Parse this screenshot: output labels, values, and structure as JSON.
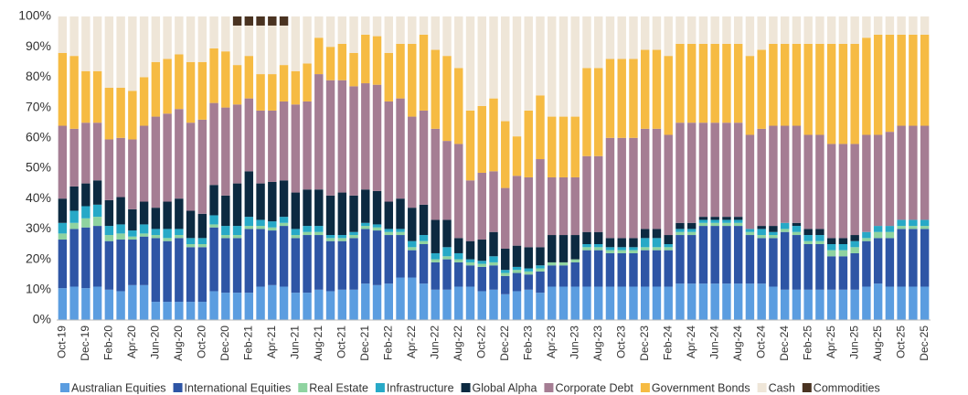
{
  "chart_data": {
    "type": "stacked-bar",
    "categories": [
      "Oct-19",
      null,
      "Dec-19",
      null,
      "Feb-20",
      null,
      "Apr-20",
      null,
      "Jun-20",
      null,
      "Aug-20",
      null,
      "Oct-20",
      null,
      "Dec-20",
      null,
      "Feb-21",
      null,
      "Apr-21",
      null,
      "Jun-21",
      null,
      "Aug-21",
      null,
      "Oct-21",
      null,
      "Dec-21",
      null,
      "Feb-22",
      null,
      "Apr-22",
      null,
      "Jun-22",
      null,
      "Aug-22",
      null,
      "Oct-22",
      null,
      "Dec-22",
      null,
      "Feb-23",
      null,
      "Apr-23",
      null,
      "Jun-23",
      null,
      "Aug-23",
      null,
      "Oct-23",
      null,
      "Dec-23",
      null,
      "Feb-24",
      null,
      "Apr-24",
      null,
      "Jun-24",
      null,
      "Aug-24",
      null,
      "Oct-24",
      null,
      "Dec-24",
      null,
      "Feb-25",
      null,
      "Apr-25",
      null,
      "Jun-25",
      null,
      "Aug-25",
      null,
      "Oct-25",
      null,
      "Dec-25"
    ],
    "series": [
      {
        "name": "Australian Equities",
        "color": "#5b9de0",
        "values": [
          10.5,
          11,
          10.5,
          11,
          10,
          9.5,
          11.5,
          11.5,
          6,
          6,
          6,
          6,
          6,
          9.5,
          9,
          9,
          9,
          11,
          11.5,
          11,
          9,
          9,
          10,
          9.5,
          10,
          10,
          12,
          11.5,
          12,
          14,
          14,
          12,
          10,
          10,
          11,
          11,
          9.5,
          10,
          8.5,
          9.5,
          10,
          9,
          11,
          11,
          11,
          11,
          11,
          11,
          11,
          11,
          11,
          11,
          11,
          12,
          12,
          12,
          12,
          12,
          12,
          12,
          12,
          11,
          10,
          10,
          10,
          10,
          10,
          10,
          10,
          11,
          12,
          11,
          11,
          11,
          11
        ]
      },
      {
        "name": "International Equities",
        "color": "#2e55a5",
        "values": [
          16,
          19,
          20,
          20,
          16,
          17,
          15,
          16,
          21,
          20,
          21,
          18,
          18,
          21,
          18,
          18,
          21,
          19,
          18,
          20,
          18,
          19,
          18,
          16.5,
          16,
          17,
          18,
          18,
          16,
          14,
          9,
          13,
          9,
          10,
          8,
          7,
          8,
          8,
          6,
          6,
          5,
          7,
          7,
          7,
          8,
          12,
          12,
          11,
          11,
          11,
          12,
          12,
          12,
          16,
          16,
          19,
          19,
          19,
          19,
          16,
          15,
          16,
          19,
          18,
          15,
          15,
          11,
          11,
          12,
          15,
          15,
          16,
          19,
          19,
          19
        ]
      },
      {
        "name": "Real Estate",
        "color": "#8fd3a0",
        "values": [
          2,
          2,
          3,
          3,
          2,
          2,
          1,
          1,
          1,
          1,
          1,
          1,
          1,
          1,
          1,
          1,
          1,
          1,
          1,
          1,
          1,
          1,
          1,
          1,
          1,
          1,
          1,
          1,
          1,
          1,
          1,
          1,
          1,
          1,
          1,
          1,
          1,
          1,
          1,
          1,
          1,
          1,
          1,
          1,
          1,
          1,
          1,
          1,
          1,
          1,
          1,
          1,
          1,
          1,
          1,
          1,
          1,
          1,
          1,
          1,
          1,
          1,
          1,
          1,
          1,
          1,
          2,
          2,
          2,
          1,
          2,
          2,
          1,
          1,
          1
        ]
      },
      {
        "name": "Infrastructure",
        "color": "#27a9c7",
        "values": [
          3.5,
          4,
          4,
          4,
          3,
          3,
          2,
          3,
          2,
          3,
          2,
          2,
          2,
          3,
          3,
          3,
          3,
          2,
          2,
          2,
          2,
          2,
          2,
          1,
          1,
          1,
          1,
          1,
          1,
          1,
          2,
          2,
          2,
          3,
          2,
          1,
          1,
          2,
          1,
          1,
          1,
          1,
          0,
          0,
          0,
          1,
          1,
          1,
          1,
          1,
          3,
          3,
          1,
          1,
          1,
          1,
          1,
          1,
          1,
          1,
          2,
          1,
          2,
          2,
          2,
          2,
          2,
          2,
          2,
          2,
          2,
          2,
          2,
          2,
          2
        ]
      },
      {
        "name": "Global Alpha",
        "color": "#0c2a41",
        "values": [
          8,
          8,
          7.5,
          8,
          8.5,
          9,
          7,
          7.5,
          7,
          9,
          10,
          9,
          8,
          10,
          10,
          14,
          15,
          12,
          13,
          12,
          12,
          12,
          12,
          13,
          14,
          12,
          11,
          11,
          9,
          10,
          11,
          10,
          11,
          9,
          5,
          6,
          7,
          8,
          7,
          7,
          7,
          6,
          9,
          9,
          8,
          4,
          4,
          3,
          3,
          3,
          3,
          3,
          3,
          2,
          2,
          1,
          1,
          1,
          1,
          0,
          1,
          2,
          0,
          1,
          2,
          2,
          2,
          2,
          2,
          0,
          0,
          0,
          0,
          0,
          0
        ]
      },
      {
        "name": "Corporate Debt",
        "color": "#a57d93",
        "values": [
          24,
          19,
          20,
          19,
          20,
          19.5,
          23,
          25,
          30,
          29,
          29.5,
          29,
          31,
          27,
          29,
          26,
          24,
          24,
          23.5,
          26,
          29,
          29,
          38,
          38,
          37,
          36,
          35,
          35,
          33,
          33,
          30,
          31,
          30,
          26,
          31,
          20,
          22,
          20,
          20,
          23,
          23,
          29,
          19,
          19,
          19,
          25,
          25,
          33,
          33,
          33,
          33,
          33,
          33,
          33,
          33,
          31,
          31,
          31,
          31,
          31,
          32,
          33,
          32,
          32,
          31,
          31,
          31,
          31,
          30,
          32,
          30,
          31,
          31,
          31,
          31
        ]
      },
      {
        "name": "Government Bonds",
        "color": "#f6bb43",
        "values": [
          24,
          24,
          17,
          17,
          17,
          16.5,
          16,
          16,
          18,
          18,
          18,
          20,
          19,
          18,
          18.5,
          13,
          14,
          12,
          12,
          12,
          11,
          12.5,
          12,
          11,
          12,
          11,
          16,
          16,
          16,
          18,
          24,
          25,
          26,
          28,
          25,
          23,
          22,
          24,
          22,
          13,
          22,
          21,
          20,
          20,
          20,
          29,
          29,
          26,
          26,
          26,
          26,
          26,
          26,
          26,
          26,
          26,
          26,
          26,
          26,
          26,
          26,
          27,
          27,
          27,
          30,
          30,
          33,
          33,
          33,
          32,
          33,
          32,
          30,
          30,
          30
        ]
      },
      {
        "name": "Cash",
        "color": "#efe6d8",
        "values": [
          12,
          13,
          18,
          18,
          23.5,
          23.5,
          24.5,
          20,
          15,
          14,
          12.5,
          15,
          15,
          10.5,
          11.5,
          13,
          10,
          16,
          16,
          13,
          18,
          15.5,
          7,
          10,
          9,
          12,
          6,
          6.5,
          12,
          9,
          9,
          6,
          11,
          13,
          17,
          31,
          29.5,
          27,
          34.5,
          39.5,
          31,
          26,
          33,
          33,
          33,
          17,
          17,
          14,
          14,
          14,
          11,
          11,
          13,
          9,
          9,
          9,
          9,
          9,
          9,
          13,
          11,
          9,
          9,
          9,
          9,
          9,
          9,
          9,
          9,
          7,
          6,
          6,
          6,
          6,
          6
        ]
      },
      {
        "name": "Commodities",
        "color": "#4a3321",
        "values": [
          0,
          0,
          0,
          0,
          0,
          0,
          0,
          0,
          0,
          0,
          0,
          0,
          0,
          0,
          0,
          3,
          3,
          3,
          3,
          3,
          0,
          0,
          0,
          0,
          0,
          0,
          0,
          0,
          0,
          0,
          0,
          0,
          0,
          0,
          0,
          0,
          0,
          0,
          0,
          0,
          0,
          0,
          0,
          0,
          0,
          0,
          0,
          0,
          0,
          0,
          0,
          0,
          0,
          0,
          0,
          0,
          0,
          0,
          0,
          0,
          0,
          0,
          0,
          0,
          0,
          0,
          0,
          0,
          0,
          0,
          0,
          0,
          0,
          0,
          0
        ]
      }
    ],
    "ylim": [
      0,
      100
    ],
    "yticks": [
      {
        "value": 0,
        "label": "0%"
      },
      {
        "value": 10,
        "label": "10%"
      },
      {
        "value": 20,
        "label": "20%"
      },
      {
        "value": 30,
        "label": "30%"
      },
      {
        "value": 40,
        "label": "40%"
      },
      {
        "value": 50,
        "label": "50%"
      },
      {
        "value": 60,
        "label": "60%"
      },
      {
        "value": 70,
        "label": "70%"
      },
      {
        "value": 80,
        "label": "80%"
      },
      {
        "value": 90,
        "label": "90%"
      },
      {
        "value": 100,
        "label": "100%"
      }
    ],
    "grid": false,
    "legend": "bottom"
  }
}
